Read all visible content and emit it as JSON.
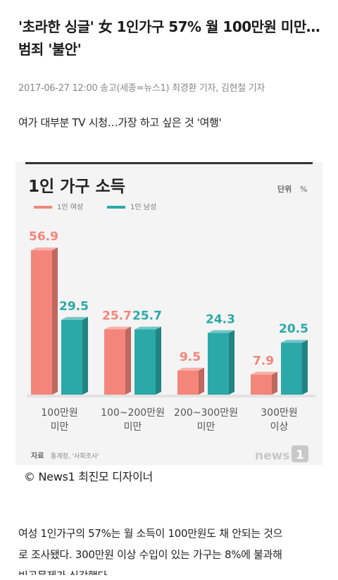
{
  "article": {
    "headline": "'초라한 싱글' 女 1인가구 57% 월 100만원 미만…범죄 '불안'",
    "byline": "2017-06-27 12:00 송고(세종=뉴스1) 최경환 기자, 김현철 기자",
    "subhead": "여가 대부분 TV 시청…가장 하고 싶은 것 '여행'",
    "credit": "© News1 최진모 디자이너",
    "body_line1": "여성 1인가구의 57%는 월 소득이 100만원도 채 안되는 것으",
    "body_line2": "로 조사됐다. 300만원 이상 수입이 있는 가구는 8%에 불과해",
    "body_line3": "빈곤문제가 심각했다."
  },
  "chart_data": {
    "type": "bar",
    "title": "1인 가구 소득",
    "unit_label": "단위",
    "unit": "%",
    "categories": [
      "100만원\n미만",
      "100~200만원\n미만",
      "200~300만원\n미만",
      "300만원\n이상"
    ],
    "series": [
      {
        "name": "1인 여성",
        "color": "#f4857a",
        "values": [
          56.9,
          25.7,
          9.5,
          7.9
        ]
      },
      {
        "name": "1인 남성",
        "color": "#2aa9a8",
        "values": [
          29.5,
          25.7,
          24.3,
          20.5
        ]
      }
    ],
    "ylim": [
      0,
      60
    ],
    "source_label": "자료",
    "source": "통계청, '사회조사'",
    "logo": "news1"
  }
}
